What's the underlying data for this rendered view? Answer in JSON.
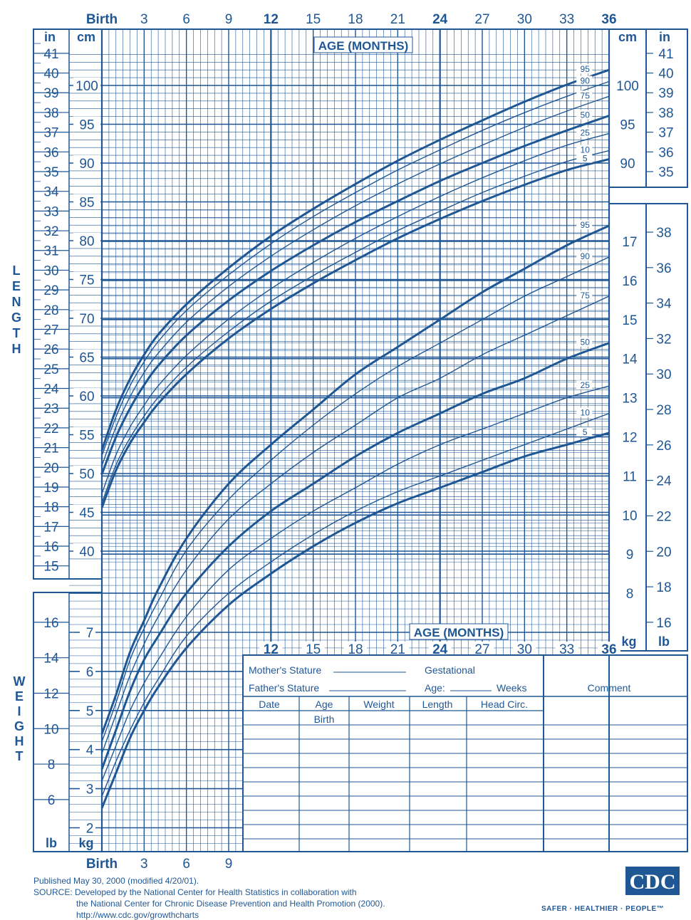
{
  "colors": {
    "ink": "#1f5795",
    "bg": "#ffffff"
  },
  "chart_data": {
    "type": "line",
    "title": "",
    "age_axis": {
      "label": "AGE (MONTHS)",
      "first_tick_label": "Birth",
      "range_months": [
        0,
        36
      ],
      "top_ticks": [
        "Birth",
        "3",
        "6",
        "9",
        "12",
        "15",
        "18",
        "21",
        "24",
        "27",
        "30",
        "33",
        "36"
      ],
      "bottom_ticks": [
        "Birth",
        "3",
        "6",
        "9"
      ],
      "mid_ticks": [
        "12",
        "15",
        "18",
        "21",
        "24",
        "27",
        "30",
        "33",
        "36"
      ]
    },
    "length": {
      "axis_label": "LENGTH",
      "unit_cm": "cm",
      "unit_in": "in",
      "range_cm": [
        39,
        104
      ],
      "cm_ticks": [
        40,
        45,
        50,
        55,
        60,
        65,
        70,
        75,
        80,
        85,
        90,
        95,
        100
      ],
      "in_ticks_left": [
        15,
        16,
        17,
        18,
        19,
        20,
        21,
        22,
        23,
        24,
        25,
        26,
        27,
        28,
        29,
        30,
        31,
        32,
        33,
        34,
        35,
        36,
        37,
        38,
        39,
        40,
        41
      ],
      "cm_ticks_right": [
        90,
        95,
        100
      ],
      "in_ticks_right": [
        35,
        36,
        37,
        38,
        39,
        40,
        41
      ],
      "months": [
        0,
        1,
        2,
        3,
        4,
        6,
        9,
        12,
        15,
        18,
        21,
        24,
        27,
        30,
        33,
        36
      ],
      "series": [
        {
          "name": "5",
          "heavy": true,
          "values": [
            45.6,
            50.4,
            53.9,
            56.6,
            59.0,
            62.8,
            67.4,
            71.2,
            74.5,
            77.5,
            80.3,
            82.8,
            85.1,
            87.2,
            89.1,
            90.5
          ]
        },
        {
          "name": "10",
          "heavy": false,
          "values": [
            46.2,
            51.1,
            54.6,
            57.4,
            59.8,
            63.7,
            68.3,
            72.2,
            75.5,
            78.5,
            81.3,
            83.8,
            86.2,
            88.3,
            90.2,
            91.6
          ]
        },
        {
          "name": "25",
          "heavy": false,
          "values": [
            47.4,
            52.4,
            56.0,
            58.8,
            61.3,
            65.2,
            69.9,
            73.8,
            77.2,
            80.3,
            83.1,
            85.7,
            88.1,
            90.3,
            92.3,
            93.8
          ]
        },
        {
          "name": "50",
          "heavy": true,
          "values": [
            49.9,
            54.7,
            58.4,
            61.4,
            63.9,
            67.8,
            72.3,
            76.1,
            79.4,
            82.4,
            85.1,
            87.7,
            90.0,
            92.2,
            94.2,
            96.1
          ]
        },
        {
          "name": "75",
          "heavy": false,
          "values": [
            51.0,
            56.0,
            59.9,
            63.0,
            65.5,
            69.5,
            74.1,
            78.0,
            81.4,
            84.5,
            87.3,
            89.9,
            92.3,
            94.6,
            96.7,
            98.6
          ]
        },
        {
          "name": "90",
          "heavy": false,
          "values": [
            52.3,
            57.3,
            61.3,
            64.4,
            67.0,
            71.0,
            75.6,
            79.6,
            83.1,
            86.2,
            89.1,
            91.7,
            94.2,
            96.5,
            98.6,
            100.5
          ]
        },
        {
          "name": "95",
          "heavy": true,
          "values": [
            53.0,
            58.2,
            62.2,
            65.3,
            67.9,
            71.8,
            76.5,
            80.6,
            84.1,
            87.3,
            90.3,
            93.0,
            95.5,
            97.9,
            100.1,
            102.0
          ]
        }
      ]
    },
    "weight": {
      "axis_label": "WEIGHT",
      "unit_kg": "kg",
      "unit_lb": "lb",
      "range_kg": [
        1.6,
        18.8
      ],
      "kg_ticks_left": [
        2,
        3,
        4,
        5,
        6,
        7
      ],
      "lb_ticks_left": [
        6,
        8,
        10,
        12,
        14,
        16
      ],
      "kg_ticks_right": [
        8,
        9,
        10,
        11,
        12,
        13,
        14,
        15,
        16,
        17
      ],
      "lb_ticks_right": [
        16,
        18,
        20,
        22,
        24,
        26,
        28,
        30,
        32,
        34,
        36,
        38
      ],
      "months": [
        0,
        1,
        2,
        3,
        4,
        6,
        9,
        12,
        15,
        18,
        21,
        24,
        27,
        30,
        33,
        36
      ],
      "series": [
        {
          "name": "5",
          "heavy": true,
          "values": [
            2.5,
            3.4,
            4.3,
            5.0,
            5.6,
            6.6,
            7.7,
            8.5,
            9.2,
            9.8,
            10.3,
            10.7,
            11.1,
            11.5,
            11.8,
            12.1
          ]
        },
        {
          "name": "10",
          "heavy": false,
          "values": [
            2.8,
            3.7,
            4.5,
            5.2,
            5.8,
            6.9,
            8.0,
            8.8,
            9.5,
            10.1,
            10.6,
            11.0,
            11.4,
            11.8,
            12.2,
            12.6
          ]
        },
        {
          "name": "25",
          "heavy": false,
          "values": [
            3.2,
            4.1,
            5.0,
            5.7,
            6.3,
            7.4,
            8.6,
            9.4,
            10.1,
            10.7,
            11.3,
            11.8,
            12.2,
            12.6,
            13.0,
            13.3
          ]
        },
        {
          "name": "50",
          "heavy": true,
          "values": [
            3.5,
            4.5,
            5.5,
            6.3,
            6.9,
            8.0,
            9.2,
            10.1,
            10.8,
            11.5,
            12.1,
            12.6,
            13.1,
            13.5,
            14.0,
            14.4
          ]
        },
        {
          "name": "75",
          "heavy": false,
          "values": [
            3.9,
            4.9,
            5.9,
            6.7,
            7.4,
            8.6,
            9.9,
            10.8,
            11.6,
            12.3,
            13.0,
            13.5,
            14.1,
            14.6,
            15.1,
            15.6
          ]
        },
        {
          "name": "90",
          "heavy": false,
          "values": [
            4.2,
            5.2,
            6.3,
            7.1,
            7.8,
            9.1,
            10.4,
            11.4,
            12.3,
            13.1,
            13.8,
            14.4,
            15.0,
            15.6,
            16.1,
            16.6
          ]
        },
        {
          "name": "95",
          "heavy": true,
          "values": [
            4.4,
            5.4,
            6.5,
            7.3,
            8.1,
            9.4,
            10.8,
            11.8,
            12.7,
            13.6,
            14.3,
            15.0,
            15.7,
            16.3,
            16.9,
            17.4
          ]
        }
      ]
    }
  },
  "record_table": {
    "mothers_stature": "Mother's Stature",
    "fathers_stature": "Father's Stature",
    "gestational": "Gestational",
    "age": "Age:",
    "weeks": "Weeks",
    "comment": "Comment",
    "columns": [
      "Date",
      "Age",
      "Weight",
      "Length",
      "Head  Circ."
    ],
    "first_age": "Birth"
  },
  "footer": {
    "published": "Published May 30, 2000 (modified 4/20/01).",
    "source_1": "SOURCE: Developed by the National Center for Health Statistics in collaboration with",
    "source_2": "the National Center for Chronic Disease Prevention and Health Promotion (2000).",
    "url": "http://www.cdc.gov/growthcharts",
    "logo_text": "CDC",
    "tagline": "SAFER · HEALTHIER · PEOPLE™"
  }
}
